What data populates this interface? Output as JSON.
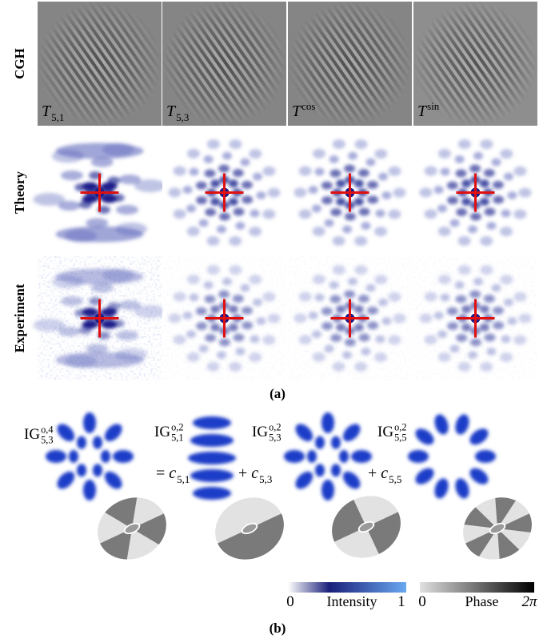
{
  "panel_a": {
    "row_labels": [
      "CGH",
      "Theory",
      "Experiment"
    ],
    "cgh_labels": [
      {
        "base": "T",
        "sub": "5,1"
      },
      {
        "base": "T",
        "sub": "5,3"
      },
      {
        "base": "T",
        "sup": "cos"
      },
      {
        "base": "T",
        "sup": "sin"
      }
    ],
    "caption": "(a)"
  },
  "panel_b": {
    "modes": [
      {
        "base": "IG",
        "sup": "o,4",
        "sub": "5,3"
      },
      {
        "base": "IG",
        "sup": "o,2",
        "sub": "5,1"
      },
      {
        "base": "IG",
        "sup": "o,2",
        "sub": "5,3"
      },
      {
        "base": "IG",
        "sup": "o,2",
        "sub": "5,5"
      }
    ],
    "coefficients": [
      {
        "prefix": "=",
        "base": "c",
        "sub": "5,1"
      },
      {
        "prefix": "+",
        "base": "c",
        "sub": "5,3"
      },
      {
        "prefix": "+",
        "base": "c",
        "sub": "5,5"
      }
    ],
    "colorbars": [
      {
        "min": 0,
        "label": "Intensity",
        "max": 1
      },
      {
        "min": 0,
        "label": "Phase",
        "max": "2π"
      }
    ],
    "caption": "(b)"
  }
}
